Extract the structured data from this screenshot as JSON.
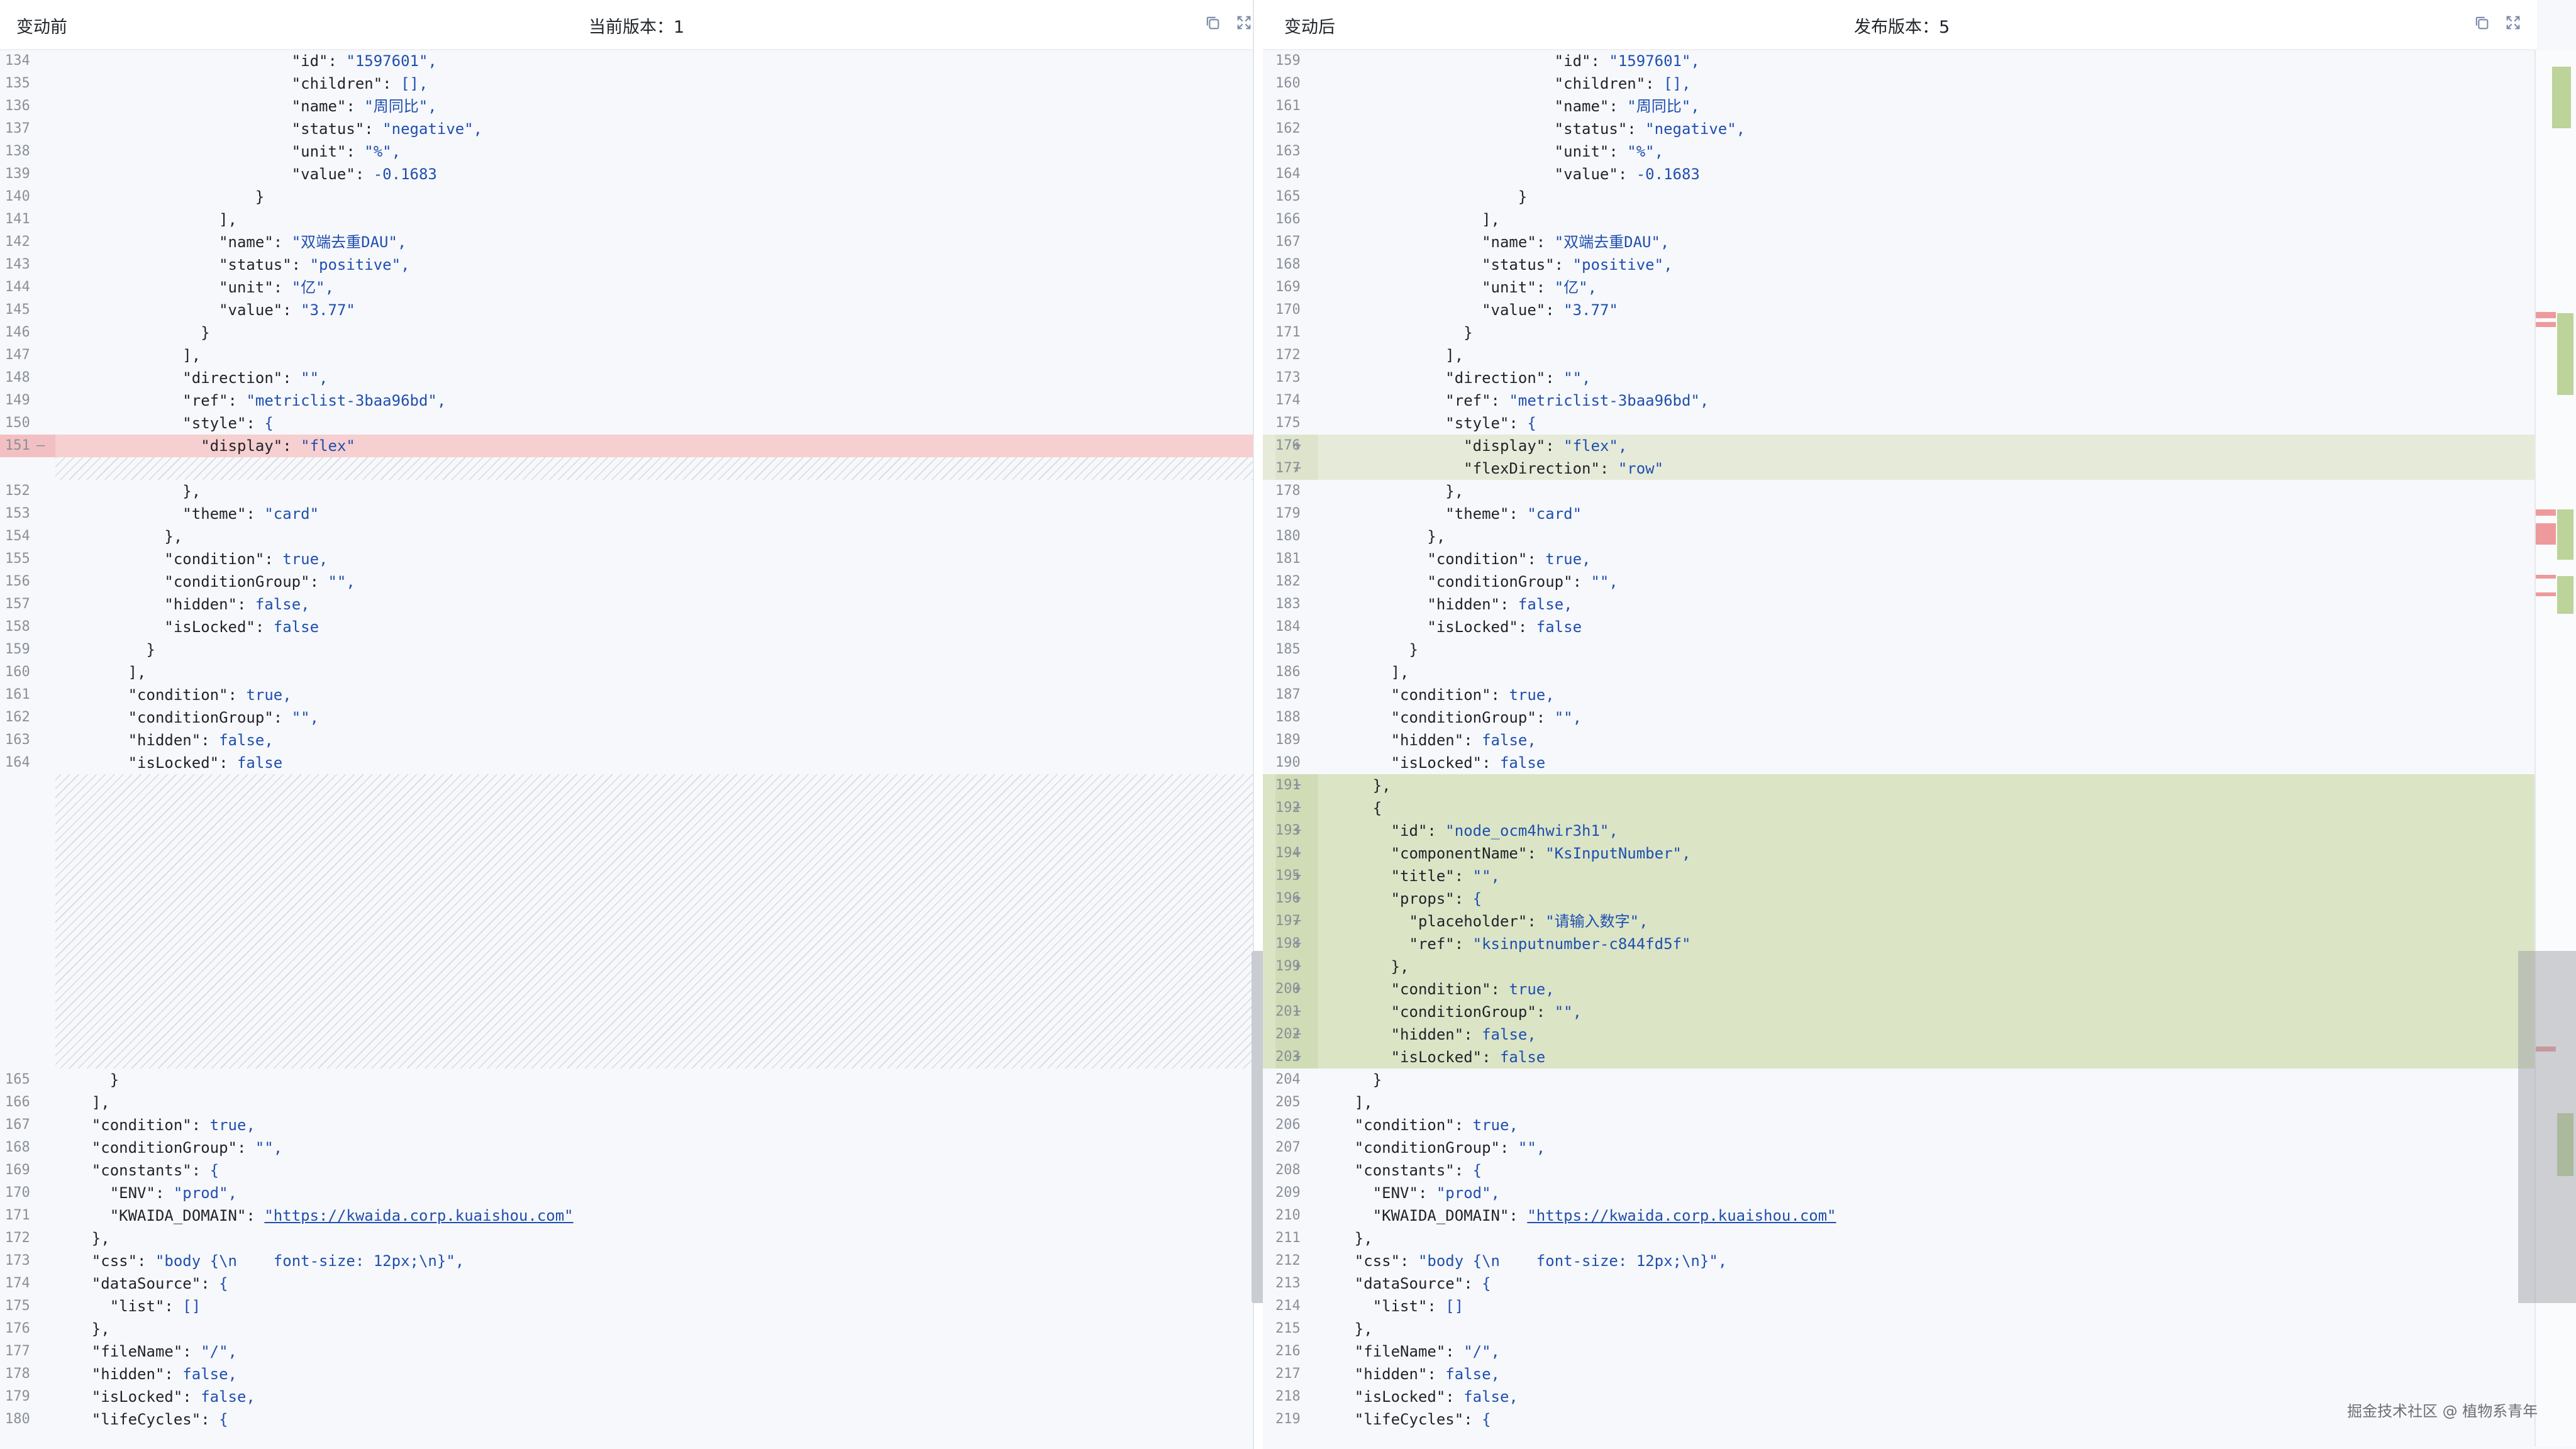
{
  "left_pane": {
    "title": "变动前",
    "version": "当前版本：1",
    "lines": [
      {
        "n": "134",
        "t": "                          \"id\": \"1597601\","
      },
      {
        "n": "135",
        "t": "                          \"children\": [],"
      },
      {
        "n": "136",
        "t": "                          \"name\": \"周同比\","
      },
      {
        "n": "137",
        "t": "                          \"status\": \"negative\","
      },
      {
        "n": "138",
        "t": "                          \"unit\": \"%\","
      },
      {
        "n": "139",
        "t": "                          \"value\": -0.1683"
      },
      {
        "n": "140",
        "t": "                      }"
      },
      {
        "n": "141",
        "t": "                  ],"
      },
      {
        "n": "142",
        "t": "                  \"name\": \"双端去重DAU\","
      },
      {
        "n": "143",
        "t": "                  \"status\": \"positive\","
      },
      {
        "n": "144",
        "t": "                  \"unit\": \"亿\","
      },
      {
        "n": "145",
        "t": "                  \"value\": \"3.77\""
      },
      {
        "n": "146",
        "t": "                }"
      },
      {
        "n": "147",
        "t": "              ],"
      },
      {
        "n": "148",
        "t": "              \"direction\": \"\","
      },
      {
        "n": "149",
        "t": "              \"ref\": \"metriclist-3baa96bd\","
      },
      {
        "n": "150",
        "t": "              \"style\": {"
      },
      {
        "n": "151",
        "t": "                \"display\": \"flex\"",
        "type": "del",
        "mark": "—"
      },
      {
        "type": "filler"
      },
      {
        "n": "152",
        "t": "              },"
      },
      {
        "n": "153",
        "t": "              \"theme\": \"card\""
      },
      {
        "n": "154",
        "t": "            },"
      },
      {
        "n": "155",
        "t": "            \"condition\": true,"
      },
      {
        "n": "156",
        "t": "            \"conditionGroup\": \"\","
      },
      {
        "n": "157",
        "t": "            \"hidden\": false,"
      },
      {
        "n": "158",
        "t": "            \"isLocked\": false"
      },
      {
        "n": "159",
        "t": "          }"
      },
      {
        "n": "160",
        "t": "        ],"
      },
      {
        "n": "161",
        "t": "        \"condition\": true,"
      },
      {
        "n": "162",
        "t": "        \"conditionGroup\": \"\","
      },
      {
        "n": "163",
        "t": "        \"hidden\": false,"
      },
      {
        "n": "164",
        "t": "        \"isLocked\": false"
      },
      {
        "type": "filler-big"
      },
      {
        "n": "165",
        "t": "      }"
      },
      {
        "n": "166",
        "t": "    ],"
      },
      {
        "n": "167",
        "t": "    \"condition\": true,"
      },
      {
        "n": "168",
        "t": "    \"conditionGroup\": \"\","
      },
      {
        "n": "169",
        "t": "    \"constants\": {"
      },
      {
        "n": "170",
        "t": "      \"ENV\": \"prod\","
      },
      {
        "n": "171",
        "t": "      \"KWAIDA_DOMAIN\": \"https://kwaida.corp.kuaishou.com\"",
        "url": true
      },
      {
        "n": "172",
        "t": "    },"
      },
      {
        "n": "173",
        "t": "    \"css\": \"body {\\n    font-size: 12px;\\n}\","
      },
      {
        "n": "174",
        "t": "    \"dataSource\": {"
      },
      {
        "n": "175",
        "t": "      \"list\": []"
      },
      {
        "n": "176",
        "t": "    },"
      },
      {
        "n": "177",
        "t": "    \"fileName\": \"/\","
      },
      {
        "n": "178",
        "t": "    \"hidden\": false,"
      },
      {
        "n": "179",
        "t": "    \"isLocked\": false,"
      },
      {
        "n": "180",
        "t": "    \"lifeCycles\": {"
      }
    ]
  },
  "right_pane": {
    "title": "变动后",
    "version": "发布版本：5",
    "lines": [
      {
        "n": "159",
        "t": "                          \"id\": \"1597601\","
      },
      {
        "n": "160",
        "t": "                          \"children\": [],"
      },
      {
        "n": "161",
        "t": "                          \"name\": \"周同比\","
      },
      {
        "n": "162",
        "t": "                          \"status\": \"negative\","
      },
      {
        "n": "163",
        "t": "                          \"unit\": \"%\","
      },
      {
        "n": "164",
        "t": "                          \"value\": -0.1683"
      },
      {
        "n": "165",
        "t": "                      }"
      },
      {
        "n": "166",
        "t": "                  ],"
      },
      {
        "n": "167",
        "t": "                  \"name\": \"双端去重DAU\","
      },
      {
        "n": "168",
        "t": "                  \"status\": \"positive\","
      },
      {
        "n": "169",
        "t": "                  \"unit\": \"亿\","
      },
      {
        "n": "170",
        "t": "                  \"value\": \"3.77\""
      },
      {
        "n": "171",
        "t": "                }"
      },
      {
        "n": "172",
        "t": "              ],"
      },
      {
        "n": "173",
        "t": "              \"direction\": \"\","
      },
      {
        "n": "174",
        "t": "              \"ref\": \"metriclist-3baa96bd\","
      },
      {
        "n": "175",
        "t": "              \"style\": {"
      },
      {
        "n": "176",
        "t": "                \"display\": \"flex\",",
        "type": "add",
        "mark": "+"
      },
      {
        "n": "177",
        "t": "                \"flexDirection\": \"row\"",
        "type": "add",
        "mark": "+"
      },
      {
        "n": "178",
        "t": "              },"
      },
      {
        "n": "179",
        "t": "              \"theme\": \"card\""
      },
      {
        "n": "180",
        "t": "            },"
      },
      {
        "n": "181",
        "t": "            \"condition\": true,"
      },
      {
        "n": "182",
        "t": "            \"conditionGroup\": \"\","
      },
      {
        "n": "183",
        "t": "            \"hidden\": false,"
      },
      {
        "n": "184",
        "t": "            \"isLocked\": false"
      },
      {
        "n": "185",
        "t": "          }"
      },
      {
        "n": "186",
        "t": "        ],"
      },
      {
        "n": "187",
        "t": "        \"condition\": true,"
      },
      {
        "n": "188",
        "t": "        \"conditionGroup\": \"\","
      },
      {
        "n": "189",
        "t": "        \"hidden\": false,"
      },
      {
        "n": "190",
        "t": "        \"isLocked\": false"
      },
      {
        "n": "191",
        "t": "      },",
        "type": "addblk",
        "mark": "+"
      },
      {
        "n": "192",
        "t": "      {",
        "type": "addblk",
        "mark": "+"
      },
      {
        "n": "193",
        "t": "        \"id\": \"node_ocm4hwir3h1\",",
        "type": "addblk",
        "mark": "+"
      },
      {
        "n": "194",
        "t": "        \"componentName\": \"KsInputNumber\",",
        "type": "addblk",
        "mark": "+"
      },
      {
        "n": "195",
        "t": "        \"title\": \"\",",
        "type": "addblk",
        "mark": "+"
      },
      {
        "n": "196",
        "t": "        \"props\": {",
        "type": "addblk",
        "mark": "+"
      },
      {
        "n": "197",
        "t": "          \"placeholder\": \"请输入数字\",",
        "type": "addblk",
        "mark": "+"
      },
      {
        "n": "198",
        "t": "          \"ref\": \"ksinputnumber-c844fd5f\"",
        "type": "addblk",
        "mark": "+"
      },
      {
        "n": "199",
        "t": "        },",
        "type": "addblk",
        "mark": "+"
      },
      {
        "n": "200",
        "t": "        \"condition\": true,",
        "type": "addblk",
        "mark": "+"
      },
      {
        "n": "201",
        "t": "        \"conditionGroup\": \"\",",
        "type": "addblk",
        "mark": "+"
      },
      {
        "n": "202",
        "t": "        \"hidden\": false,",
        "type": "addblk",
        "mark": "+"
      },
      {
        "n": "203",
        "t": "        \"isLocked\": false",
        "type": "addblk",
        "mark": "+"
      },
      {
        "n": "204",
        "t": "      }"
      },
      {
        "n": "205",
        "t": "    ],"
      },
      {
        "n": "206",
        "t": "    \"condition\": true,"
      },
      {
        "n": "207",
        "t": "    \"conditionGroup\": \"\","
      },
      {
        "n": "208",
        "t": "    \"constants\": {"
      },
      {
        "n": "209",
        "t": "      \"ENV\": \"prod\","
      },
      {
        "n": "210",
        "t": "      \"KWAIDA_DOMAIN\": \"https://kwaida.corp.kuaishou.com\"",
        "url": true
      },
      {
        "n": "211",
        "t": "    },"
      },
      {
        "n": "212",
        "t": "    \"css\": \"body {\\n    font-size: 12px;\\n}\","
      },
      {
        "n": "213",
        "t": "    \"dataSource\": {"
      },
      {
        "n": "214",
        "t": "      \"list\": []"
      },
      {
        "n": "215",
        "t": "    },"
      },
      {
        "n": "216",
        "t": "    \"fileName\": \"/\","
      },
      {
        "n": "217",
        "t": "    \"hidden\": false,"
      },
      {
        "n": "218",
        "t": "    \"isLocked\": false,"
      },
      {
        "n": "219",
        "t": "    \"lifeCycles\": {"
      }
    ]
  },
  "icons": {
    "copy": "copy-icon",
    "fullscreen": "fullscreen-icon"
  },
  "colors": {
    "deleted_line": "#f6cfd0",
    "added_line": "#e6ebd9",
    "added_block": "#dbe5c6",
    "json_key": "#1f2329",
    "json_value": "#1f4fb0"
  },
  "watermark": "掘金技术社区 @ 植物系青年"
}
